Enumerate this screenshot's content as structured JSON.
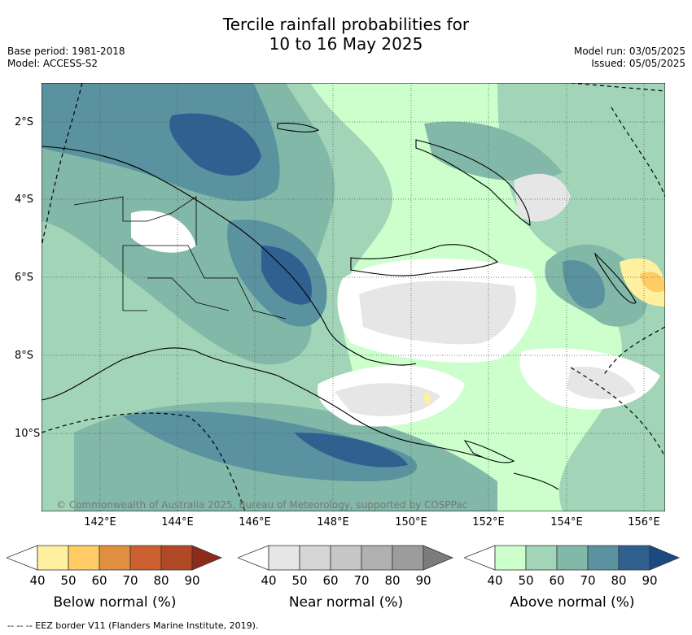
{
  "title": {
    "line1": "Tercile rainfall probabilities for",
    "line2": "10 to 16 May 2025"
  },
  "meta": {
    "base_period": "Base period: 1981-2018",
    "model": "Model: ACCESS-S2",
    "model_run": "Model run: 03/05/2025",
    "issued": "Issued: 05/05/2025"
  },
  "axes": {
    "lat_ticks": [
      "2°S",
      "4°S",
      "6°S",
      "8°S",
      "10°S"
    ],
    "lon_ticks": [
      "142°E",
      "144°E",
      "146°E",
      "148°E",
      "150°E",
      "152°E",
      "154°E",
      "156°E"
    ]
  },
  "copyright": "© Commonwealth of Australia 2025, Bureau of Meteorology, supported by COSPPac",
  "colorbars": [
    {
      "label": "Below normal (%)",
      "ticks": [
        "40",
        "50",
        "60",
        "70",
        "80",
        "90"
      ],
      "colors": [
        "#ffffff",
        "#fff0a0",
        "#ffcc66",
        "#e09040",
        "#cc6030",
        "#b04a26",
        "#8c2c18"
      ]
    },
    {
      "label": "Near normal (%)",
      "ticks": [
        "40",
        "50",
        "60",
        "70",
        "80",
        "90"
      ],
      "colors": [
        "#ffffff",
        "#e6e6e6",
        "#d6d6d6",
        "#c6c6c6",
        "#b0b0b0",
        "#9c9c9c",
        "#7c7c7c"
      ]
    },
    {
      "label": "Above normal (%)",
      "ticks": [
        "40",
        "50",
        "60",
        "70",
        "80",
        "90"
      ],
      "colors": [
        "#ffffff",
        "#ccffcc",
        "#a2d4b8",
        "#82b8a8",
        "#5a92a0",
        "#2f6090",
        "#1a4a80"
      ]
    }
  ],
  "footnote": "-- -- -- EEZ border V11 (Flanders Marine Institute, 2019)."
}
